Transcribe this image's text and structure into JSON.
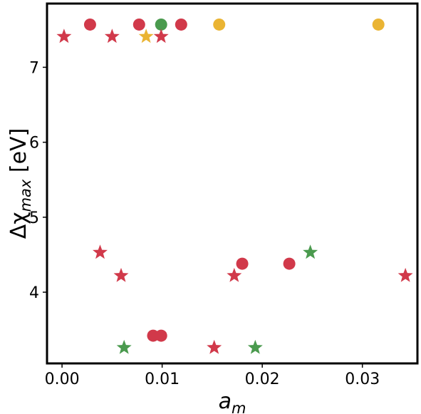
{
  "chart_data": {
    "type": "scatter",
    "xlabel_main": "a",
    "xlabel_sub": "m",
    "ylabel_main": "Δχ",
    "ylabel_sub": "max",
    "ylabel_unit": " [eV]",
    "xlim": [
      -0.0015,
      0.0355
    ],
    "ylim": [
      3.05,
      7.85
    ],
    "x_ticks": [
      0.0,
      0.01,
      0.02,
      0.03
    ],
    "x_tick_labels": [
      "0.00",
      "0.01",
      "0.02",
      "0.03"
    ],
    "y_ticks": [
      4,
      5,
      6,
      7
    ],
    "y_tick_labels": [
      "4",
      "5",
      "6",
      "7"
    ],
    "grid": false,
    "colors": {
      "red": "#d1394a",
      "green": "#4a9a4e",
      "yellow": "#eab433"
    },
    "points": [
      {
        "x": 0.0002,
        "y": 7.41,
        "marker": "star",
        "color": "red"
      },
      {
        "x": 0.0028,
        "y": 7.57,
        "marker": "circle",
        "color": "red"
      },
      {
        "x": 0.005,
        "y": 7.41,
        "marker": "star",
        "color": "red"
      },
      {
        "x": 0.0077,
        "y": 7.57,
        "marker": "circle",
        "color": "red"
      },
      {
        "x": 0.0084,
        "y": 7.41,
        "marker": "star",
        "color": "yellow"
      },
      {
        "x": 0.0099,
        "y": 7.57,
        "marker": "circle",
        "color": "green"
      },
      {
        "x": 0.0099,
        "y": 7.41,
        "marker": "star",
        "color": "red"
      },
      {
        "x": 0.0119,
        "y": 7.57,
        "marker": "circle",
        "color": "red"
      },
      {
        "x": 0.0157,
        "y": 7.57,
        "marker": "circle",
        "color": "yellow"
      },
      {
        "x": 0.0316,
        "y": 7.57,
        "marker": "circle",
        "color": "yellow"
      },
      {
        "x": 0.0038,
        "y": 4.53,
        "marker": "star",
        "color": "red"
      },
      {
        "x": 0.0059,
        "y": 4.22,
        "marker": "star",
        "color": "red"
      },
      {
        "x": 0.0062,
        "y": 3.26,
        "marker": "star",
        "color": "green"
      },
      {
        "x": 0.0091,
        "y": 3.42,
        "marker": "circle",
        "color": "red"
      },
      {
        "x": 0.0099,
        "y": 3.42,
        "marker": "circle",
        "color": "red"
      },
      {
        "x": 0.0152,
        "y": 3.26,
        "marker": "star",
        "color": "red"
      },
      {
        "x": 0.0172,
        "y": 4.22,
        "marker": "star",
        "color": "red"
      },
      {
        "x": 0.018,
        "y": 4.38,
        "marker": "circle",
        "color": "red"
      },
      {
        "x": 0.0193,
        "y": 3.26,
        "marker": "star",
        "color": "green"
      },
      {
        "x": 0.0227,
        "y": 4.38,
        "marker": "circle",
        "color": "red"
      },
      {
        "x": 0.0248,
        "y": 4.53,
        "marker": "star",
        "color": "green"
      },
      {
        "x": 0.0343,
        "y": 4.22,
        "marker": "star",
        "color": "red"
      }
    ]
  }
}
